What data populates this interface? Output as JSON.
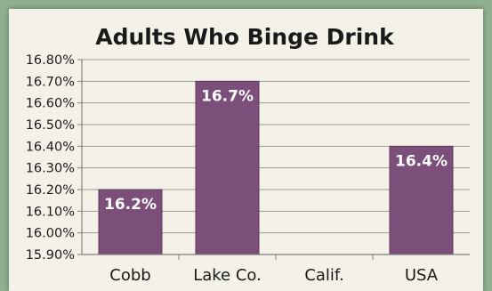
{
  "chart_data": {
    "type": "bar",
    "title": "Adults Who Binge Drink",
    "categories": [
      "Cobb",
      "Lake Co.",
      "Calif.",
      "USA"
    ],
    "values": [
      16.2,
      16.7,
      null,
      16.4
    ],
    "data_labels": [
      "16.2%",
      "16.7%",
      "",
      "16.4%"
    ],
    "ylim": [
      15.9,
      16.8
    ],
    "yticks": [
      15.9,
      16.0,
      16.1,
      16.2,
      16.3,
      16.4,
      16.5,
      16.6,
      16.7,
      16.8
    ],
    "ytick_labels": [
      "15.90%",
      "16.00%",
      "16.10%",
      "16.20%",
      "16.30%",
      "16.40%",
      "16.50%",
      "16.60%",
      "16.70%",
      "16.80%"
    ],
    "grid": true,
    "legend": "none",
    "colors": {
      "bar": "#7b4f7a",
      "bar_edge": "#5e3a5d",
      "grid": "#9a9a9a",
      "axis": "#808080",
      "panel": "#f4f2e8",
      "frame": "#8fb08f"
    }
  }
}
